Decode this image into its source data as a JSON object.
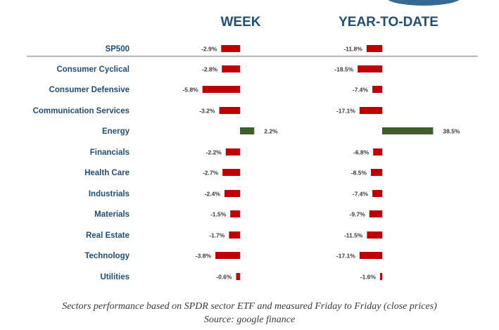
{
  "colors": {
    "negative": "#c00000",
    "positive": "#3e5f2a",
    "label": "#1f4e79",
    "header": "#1f4e79",
    "value_text": "#3a3a3a",
    "divider": "#8c8c8c"
  },
  "footer": {
    "line1": "Sectors performance based on SPDR sector ETF and measured Friday to Friday (close prices)",
    "line2": "Source: google finance"
  },
  "chart_data": [
    {
      "type": "bar",
      "orientation": "horizontal",
      "title": "WEEK",
      "unit": "%",
      "categories": [
        "SP500",
        "Consumer Cyclical",
        "Consumer Defensive",
        "Communication Services",
        "Energy",
        "Financials",
        "Health Care",
        "Industrials",
        "Materials",
        "Real Estate",
        "Technology",
        "Utilities"
      ],
      "values": [
        -2.9,
        -2.8,
        -5.8,
        -3.2,
        2.2,
        -2.2,
        -2.7,
        -2.4,
        -1.5,
        -1.7,
        -3.8,
        -0.6
      ],
      "value_labels": [
        "-2.9%",
        "-2.8%",
        "-5.8%",
        "-3.2%",
        "2.2%",
        "-2.2%",
        "-2.7%",
        "-2.4%",
        "-1.5%",
        "-1.7%",
        "-3.8%",
        "-0.6%"
      ]
    },
    {
      "type": "bar",
      "orientation": "horizontal",
      "title": "YEAR-TO-DATE",
      "unit": "%",
      "categories": [
        "SP500",
        "Consumer Cyclical",
        "Consumer Defensive",
        "Communication Services",
        "Energy",
        "Financials",
        "Health Care",
        "Industrials",
        "Materials",
        "Real Estate",
        "Technology",
        "Utilities"
      ],
      "values": [
        -11.8,
        -18.5,
        -7.4,
        -17.1,
        38.5,
        -6.8,
        -8.5,
        -7.4,
        -9.7,
        -11.5,
        -17.1,
        -1.6
      ],
      "value_labels": [
        "-11.8%",
        "-18.5%",
        "-7.4%",
        "-17.1%",
        "38.5%",
        "-6.8%",
        "-8.5%",
        "-7.4%",
        "-9.7%",
        "-11.5%",
        "-17.1%",
        "-1.6%"
      ]
    }
  ]
}
